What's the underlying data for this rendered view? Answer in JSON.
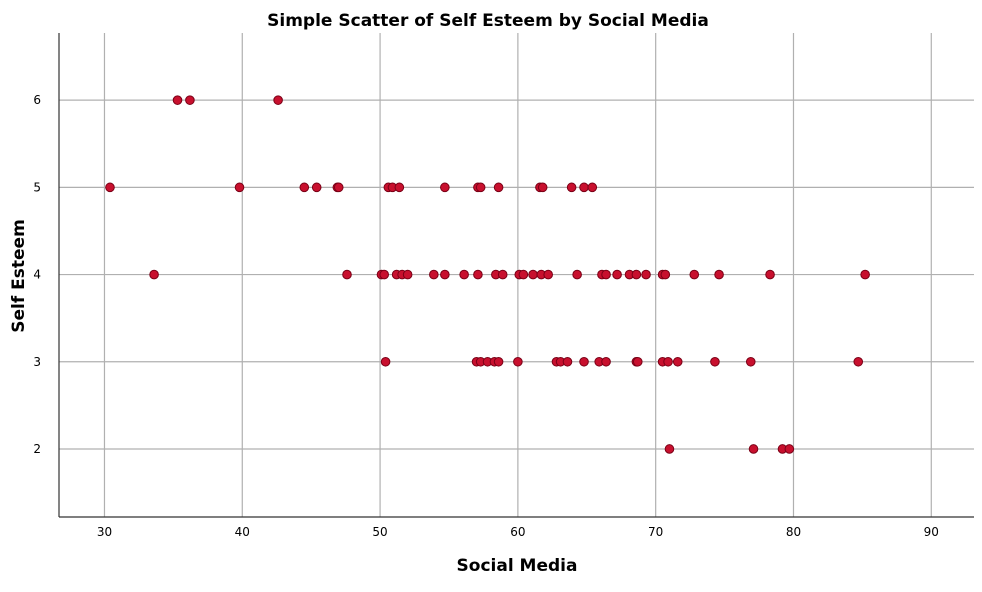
{
  "chart_data": {
    "type": "scatter",
    "title": "Simple Scatter of Self Esteem by Social Media",
    "xlabel": "Social Media",
    "ylabel": "Self Esteem",
    "xlim": [
      26.7,
      93.1
    ],
    "ylim": [
      1.22,
      6.77
    ],
    "xticks": [
      30,
      40,
      50,
      60,
      70,
      80,
      90
    ],
    "yticks": [
      2,
      3,
      4,
      5,
      6
    ],
    "grid": true,
    "marker_color": "#c8102e",
    "marker_edge_color": "#7a0016",
    "points": [
      {
        "x": 35.3,
        "y": 6
      },
      {
        "x": 36.2,
        "y": 6
      },
      {
        "x": 42.6,
        "y": 6
      },
      {
        "x": 30.4,
        "y": 5
      },
      {
        "x": 39.8,
        "y": 5
      },
      {
        "x": 44.5,
        "y": 5
      },
      {
        "x": 45.4,
        "y": 5
      },
      {
        "x": 46.9,
        "y": 5
      },
      {
        "x": 47.0,
        "y": 5
      },
      {
        "x": 50.6,
        "y": 5
      },
      {
        "x": 50.9,
        "y": 5
      },
      {
        "x": 51.4,
        "y": 5
      },
      {
        "x": 54.7,
        "y": 5
      },
      {
        "x": 57.1,
        "y": 5
      },
      {
        "x": 57.3,
        "y": 5
      },
      {
        "x": 58.6,
        "y": 5
      },
      {
        "x": 61.6,
        "y": 5
      },
      {
        "x": 61.8,
        "y": 5
      },
      {
        "x": 63.9,
        "y": 5
      },
      {
        "x": 64.8,
        "y": 5
      },
      {
        "x": 65.4,
        "y": 5
      },
      {
        "x": 33.6,
        "y": 4
      },
      {
        "x": 47.6,
        "y": 4
      },
      {
        "x": 50.1,
        "y": 4
      },
      {
        "x": 50.3,
        "y": 4
      },
      {
        "x": 51.2,
        "y": 4
      },
      {
        "x": 51.6,
        "y": 4
      },
      {
        "x": 52.0,
        "y": 4
      },
      {
        "x": 53.9,
        "y": 4
      },
      {
        "x": 54.7,
        "y": 4
      },
      {
        "x": 56.1,
        "y": 4
      },
      {
        "x": 57.1,
        "y": 4
      },
      {
        "x": 58.4,
        "y": 4
      },
      {
        "x": 58.9,
        "y": 4
      },
      {
        "x": 60.1,
        "y": 4
      },
      {
        "x": 60.4,
        "y": 4
      },
      {
        "x": 61.1,
        "y": 4
      },
      {
        "x": 61.7,
        "y": 4
      },
      {
        "x": 62.2,
        "y": 4
      },
      {
        "x": 64.3,
        "y": 4
      },
      {
        "x": 66.1,
        "y": 4
      },
      {
        "x": 66.4,
        "y": 4
      },
      {
        "x": 67.2,
        "y": 4
      },
      {
        "x": 68.1,
        "y": 4
      },
      {
        "x": 68.6,
        "y": 4
      },
      {
        "x": 69.3,
        "y": 4
      },
      {
        "x": 70.5,
        "y": 4
      },
      {
        "x": 70.7,
        "y": 4
      },
      {
        "x": 72.8,
        "y": 4
      },
      {
        "x": 74.6,
        "y": 4
      },
      {
        "x": 78.3,
        "y": 4
      },
      {
        "x": 85.2,
        "y": 4
      },
      {
        "x": 50.4,
        "y": 3
      },
      {
        "x": 57.0,
        "y": 3
      },
      {
        "x": 57.3,
        "y": 3
      },
      {
        "x": 57.8,
        "y": 3
      },
      {
        "x": 58.3,
        "y": 3
      },
      {
        "x": 58.6,
        "y": 3
      },
      {
        "x": 60.0,
        "y": 3
      },
      {
        "x": 62.8,
        "y": 3
      },
      {
        "x": 63.1,
        "y": 3
      },
      {
        "x": 63.6,
        "y": 3
      },
      {
        "x": 64.8,
        "y": 3
      },
      {
        "x": 65.9,
        "y": 3
      },
      {
        "x": 66.4,
        "y": 3
      },
      {
        "x": 68.6,
        "y": 3
      },
      {
        "x": 68.7,
        "y": 3
      },
      {
        "x": 70.5,
        "y": 3
      },
      {
        "x": 70.9,
        "y": 3
      },
      {
        "x": 71.6,
        "y": 3
      },
      {
        "x": 74.3,
        "y": 3
      },
      {
        "x": 76.9,
        "y": 3
      },
      {
        "x": 84.7,
        "y": 3
      },
      {
        "x": 71.0,
        "y": 2
      },
      {
        "x": 77.1,
        "y": 2
      },
      {
        "x": 79.2,
        "y": 2
      },
      {
        "x": 79.7,
        "y": 2
      }
    ]
  }
}
